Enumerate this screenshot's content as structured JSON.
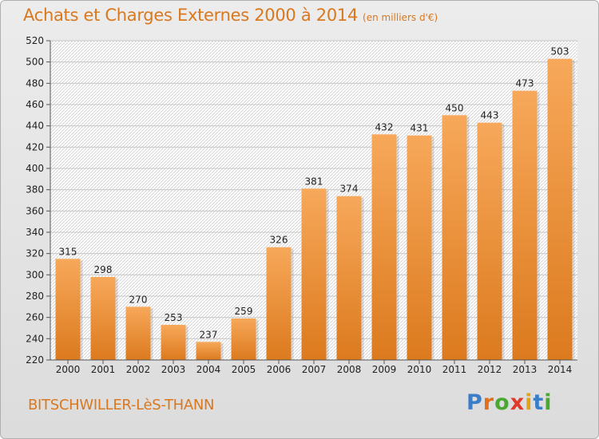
{
  "title": "Achats et Charges Externes 2000 à 2014",
  "subtitle": "(en milliers d'€)",
  "city": "BITSCHWILLER-LèS-THANN",
  "brand": {
    "letters": [
      "P",
      "r",
      "o",
      "x",
      "i",
      "t",
      "i"
    ],
    "colors": [
      "#3a7dc9",
      "#e0701c",
      "#4aa832",
      "#e03a2a",
      "#e0a21c",
      "#3a7dc9",
      "#4aa832"
    ]
  },
  "colors": {
    "bar_light": "#f7a85a",
    "bar_dark": "#dc7a1e",
    "text_accent": "#d9781e"
  },
  "chart_data": {
    "type": "bar",
    "categories": [
      "2000",
      "2001",
      "2002",
      "2003",
      "2004",
      "2005",
      "2006",
      "2007",
      "2008",
      "2009",
      "2010",
      "2011",
      "2012",
      "2013",
      "2014"
    ],
    "values": [
      315,
      298,
      270,
      253,
      237,
      259,
      326,
      381,
      374,
      432,
      431,
      450,
      443,
      473,
      503
    ],
    "ylim": [
      220,
      520
    ],
    "yticks": [
      220,
      240,
      260,
      280,
      300,
      320,
      340,
      360,
      380,
      400,
      420,
      440,
      460,
      480,
      500,
      520
    ],
    "grid": true,
    "xlabel": "",
    "ylabel": ""
  }
}
